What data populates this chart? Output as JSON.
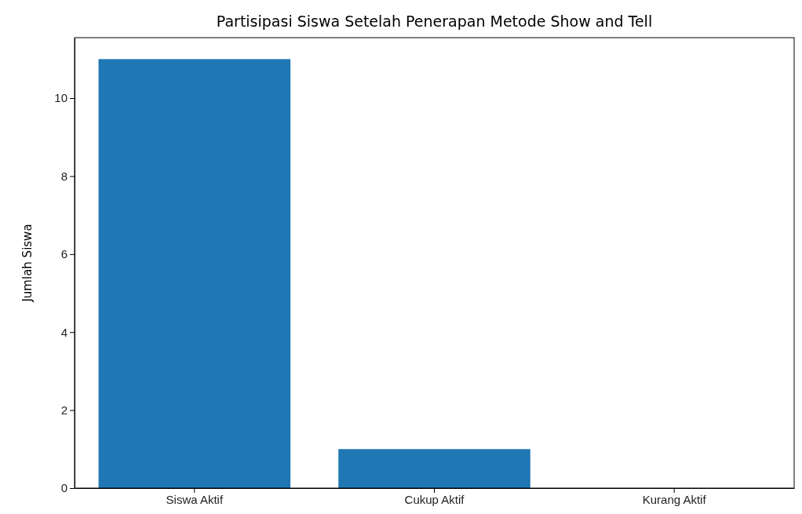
{
  "chart_data": {
    "type": "bar",
    "title": "Partisipasi Siswa Setelah Penerapan Metode Show and Tell",
    "ylabel": "Jumlah Siswa",
    "categories": [
      "Siswa Aktif",
      "Cukup Aktif",
      "Kurang Aktif"
    ],
    "values": [
      11,
      1,
      0
    ],
    "color": "#1f77b4",
    "ylim": [
      0,
      11.55
    ],
    "yticks": [
      0,
      2,
      4,
      6,
      8,
      10
    ],
    "grid": false
  }
}
